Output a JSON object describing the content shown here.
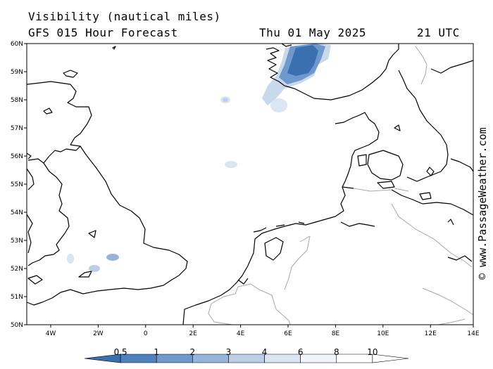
{
  "title": {
    "line1": "Visibility (nautical miles)",
    "line2": "GFS 015 Hour Forecast",
    "date": "Thu 01 May 2025",
    "time": "21 UTC"
  },
  "credit": "© www.PassageWeather.com",
  "map": {
    "lon_range": [
      -5,
      14
    ],
    "lat_range": [
      50,
      60
    ],
    "lon_ticks": [
      "4W",
      "2W",
      "0",
      "2E",
      "4E",
      "6E",
      "8E",
      "10E",
      "12E",
      "14E"
    ],
    "lat_ticks": [
      "50N",
      "51N",
      "52N",
      "53N",
      "54N",
      "55N",
      "56N",
      "57N",
      "58N",
      "59N",
      "60N"
    ]
  },
  "legend": {
    "labels": [
      "0.5",
      "1",
      "2",
      "3",
      "4",
      "6",
      "8",
      "10"
    ],
    "colors": [
      "#3a6fb0",
      "#4f81bf",
      "#6f98cc",
      "#97b5da",
      "#bccfe7",
      "#dbe6f3",
      "#f1f5fa",
      "#ffffff",
      "#ffffff"
    ]
  }
}
